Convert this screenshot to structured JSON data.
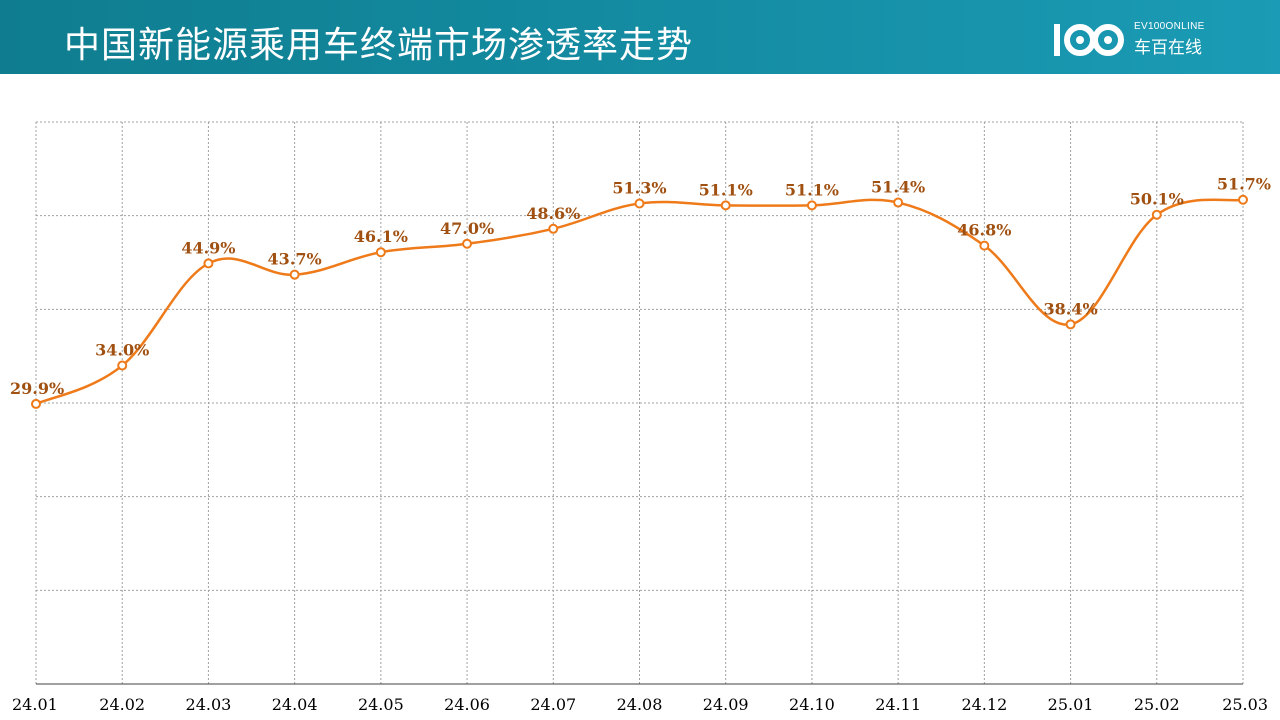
{
  "header": {
    "title": "中国新能源乘用车终端市场渗透率走势",
    "logo_en": "EV100ONLINE",
    "logo_cn": "车百在线"
  },
  "colors": {
    "header_bg": "#1189a0",
    "line": "#ee7a1a",
    "data_label": "#a05010",
    "grid": "#a0a0a0"
  },
  "chart_data": {
    "type": "line",
    "categories": [
      "24.01",
      "24.02",
      "24.03",
      "24.04",
      "24.05",
      "24.06",
      "24.07",
      "24.08",
      "24.09",
      "24.10",
      "24.11",
      "24.12",
      "25.01",
      "25.02",
      "25.03"
    ],
    "series": [
      {
        "values": [
          29.9,
          34.0,
          44.9,
          43.7,
          46.1,
          47.0,
          48.6,
          51.3,
          51.1,
          51.1,
          51.4,
          46.8,
          38.4,
          50.1,
          51.7
        ],
        "labels": [
          "29.9%",
          "34.0%",
          "44.9%",
          "43.7%",
          "46.1%",
          "47.0%",
          "48.6%",
          "51.3%",
          "51.1%",
          "51.1%",
          "51.4%",
          "46.8%",
          "38.4%",
          "50.1%",
          "51.7%"
        ]
      }
    ],
    "ylim": [
      0,
      60
    ],
    "y_grid_step": 10,
    "grid": true,
    "smooth": true,
    "markers": "hollow-circle",
    "y_tick_labels_shown": false
  }
}
